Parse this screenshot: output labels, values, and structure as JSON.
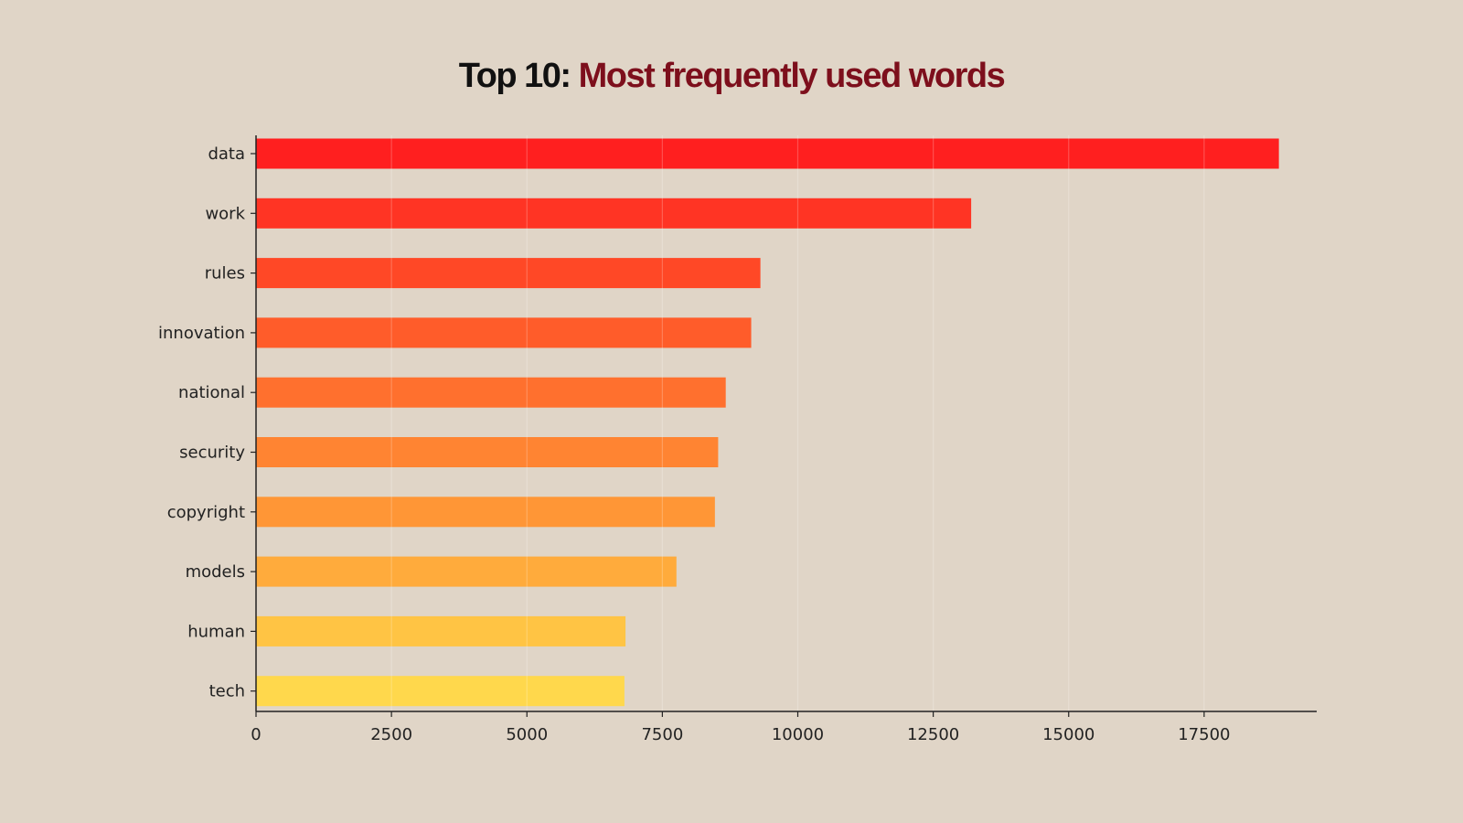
{
  "title": {
    "prefix": "Top 10:",
    "main": "Most frequently used words"
  },
  "chart_data": {
    "type": "bar",
    "orientation": "horizontal",
    "title": "Top 10: Most frequently used words",
    "xlabel": "",
    "ylabel": "",
    "categories": [
      "data",
      "work",
      "rules",
      "innovation",
      "national",
      "security",
      "copyright",
      "models",
      "human",
      "tech"
    ],
    "values": [
      18880,
      13200,
      9310,
      9140,
      8670,
      8530,
      8470,
      7760,
      6820,
      6800
    ],
    "xlim": [
      0,
      19600
    ],
    "xticks": [
      0,
      2500,
      5000,
      7500,
      10000,
      12500,
      15000,
      17500
    ],
    "xtick_labels": [
      "0",
      "2500",
      "5000",
      "7500",
      "10000",
      "12500",
      "15000",
      "17500"
    ],
    "grid": true,
    "legend": "none",
    "colors": [
      "#ff1f1f",
      "#ff3424",
      "#ff4826",
      "#ff5c2a",
      "#ff702e",
      "#ff8432",
      "#ff9636",
      "#ffab3c",
      "#ffc444",
      "#ffd84c"
    ]
  }
}
